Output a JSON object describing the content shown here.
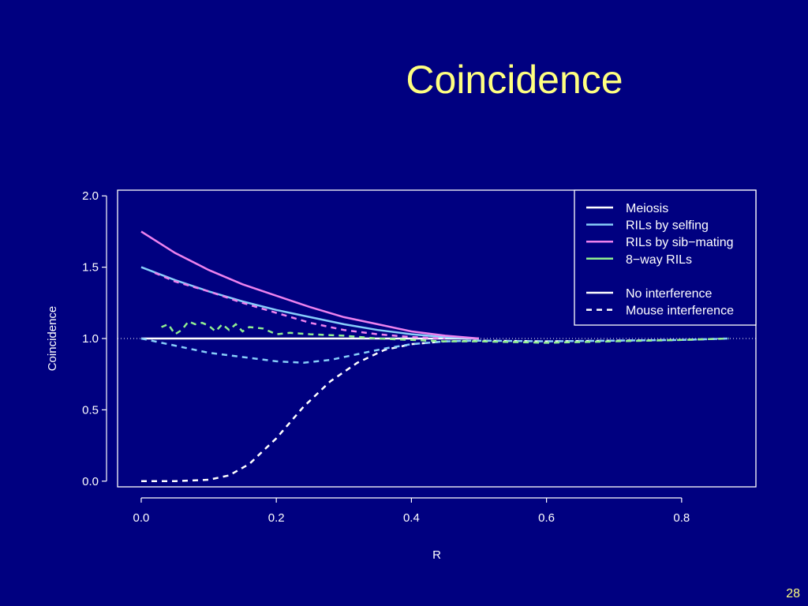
{
  "slide": {
    "title": "Coincidence",
    "page_number": "28"
  },
  "colors": {
    "background": "#000080",
    "title": "#ffff80",
    "axis": "#ffffff",
    "meiosis": "#ffffff",
    "selfing": "#87cefa",
    "sibmating": "#ee82ee",
    "eightway": "#90ee90"
  },
  "chart_data": {
    "type": "line",
    "xlabel": "R",
    "ylabel": "Coincidence",
    "xlim": [
      -0.035,
      0.91
    ],
    "ylim": [
      -0.04,
      2.04
    ],
    "x_ticks": [
      "0.0",
      "0.2",
      "0.4",
      "0.6",
      "0.8"
    ],
    "y_ticks": [
      "0.0",
      "0.5",
      "1.0",
      "1.5",
      "2.0"
    ],
    "reference_line": {
      "y": 1.0,
      "style": "dotted"
    },
    "legend_position": "top-right",
    "legend_entries": [
      {
        "label": "Meiosis",
        "color": "#ffffff",
        "style": "solid"
      },
      {
        "label": "RILs by selfing",
        "color": "#87cefa",
        "style": "solid"
      },
      {
        "label": "RILs by sib−mating",
        "color": "#ee82ee",
        "style": "solid"
      },
      {
        "label": "8−way RILs",
        "color": "#90ee90",
        "style": "solid"
      },
      {
        "label": "",
        "color": "",
        "style": "none"
      },
      {
        "label": "No interference",
        "color": "#ffffff",
        "style": "solid"
      },
      {
        "label": "Mouse interference",
        "color": "#ffffff",
        "style": "dashed"
      }
    ],
    "series": [
      {
        "key": "meiosis-none",
        "color": "#ffffff",
        "style": "solid",
        "x": [
          0,
          0.1,
          0.2,
          0.3,
          0.4,
          0.5
        ],
        "y": [
          1,
          1,
          1,
          1,
          1,
          1
        ]
      },
      {
        "key": "selfing-none",
        "color": "#87cefa",
        "style": "solid",
        "x": [
          0,
          0.05,
          0.1,
          0.15,
          0.2,
          0.25,
          0.3,
          0.35,
          0.4,
          0.45,
          0.5
        ],
        "y": [
          1.5,
          1.41,
          1.33,
          1.26,
          1.2,
          1.15,
          1.1,
          1.06,
          1.03,
          1.01,
          1.0
        ]
      },
      {
        "key": "sibmating-none",
        "color": "#ee82ee",
        "style": "solid",
        "x": [
          0,
          0.05,
          0.1,
          0.15,
          0.2,
          0.25,
          0.3,
          0.35,
          0.4,
          0.45,
          0.5
        ],
        "y": [
          1.75,
          1.6,
          1.48,
          1.38,
          1.3,
          1.22,
          1.15,
          1.1,
          1.05,
          1.02,
          1.0
        ]
      },
      {
        "key": "meiosis-mouse",
        "color": "#ffffff",
        "style": "dashed",
        "x": [
          0,
          0.05,
          0.1,
          0.13,
          0.16,
          0.2,
          0.24,
          0.28,
          0.32,
          0.36,
          0.4,
          0.45,
          0.5,
          0.6,
          0.7,
          0.8,
          0.87
        ],
        "y": [
          0,
          0,
          0.01,
          0.04,
          0.12,
          0.3,
          0.52,
          0.7,
          0.83,
          0.92,
          0.96,
          0.98,
          0.985,
          0.98,
          0.985,
          0.99,
          1.0
        ]
      },
      {
        "key": "selfing-mouse",
        "color": "#87cefa",
        "style": "dashed",
        "x": [
          0,
          0.05,
          0.1,
          0.15,
          0.2,
          0.24,
          0.28,
          0.32,
          0.36,
          0.4,
          0.45,
          0.5,
          0.6,
          0.7,
          0.8,
          0.87
        ],
        "y": [
          1.0,
          0.95,
          0.9,
          0.87,
          0.84,
          0.83,
          0.85,
          0.89,
          0.93,
          0.96,
          0.98,
          0.985,
          0.98,
          0.985,
          0.99,
          1.0
        ]
      },
      {
        "key": "sibmating-mouse",
        "color": "#ee82ee",
        "style": "dashed",
        "x": [
          0.02,
          0.05,
          0.1,
          0.15,
          0.2,
          0.25,
          0.3,
          0.35,
          0.4,
          0.45
        ],
        "y": [
          1.46,
          1.4,
          1.33,
          1.25,
          1.18,
          1.11,
          1.06,
          1.03,
          1.01,
          1.0
        ]
      },
      {
        "key": "eightway-mouse",
        "color": "#90ee90",
        "style": "dashed",
        "x": [
          0.03,
          0.04,
          0.05,
          0.06,
          0.07,
          0.08,
          0.09,
          0.1,
          0.11,
          0.12,
          0.13,
          0.14,
          0.15,
          0.16,
          0.18,
          0.2,
          0.22,
          0.25,
          0.3,
          0.35,
          0.4,
          0.45,
          0.5,
          0.55,
          0.6,
          0.7,
          0.8,
          0.87
        ],
        "y": [
          1.08,
          1.1,
          1.03,
          1.06,
          1.12,
          1.1,
          1.11,
          1.09,
          1.05,
          1.1,
          1.06,
          1.1,
          1.05,
          1.08,
          1.07,
          1.03,
          1.04,
          1.03,
          1.02,
          1.0,
          0.99,
          0.98,
          0.98,
          0.975,
          0.97,
          0.98,
          0.99,
          1.0
        ]
      }
    ]
  }
}
